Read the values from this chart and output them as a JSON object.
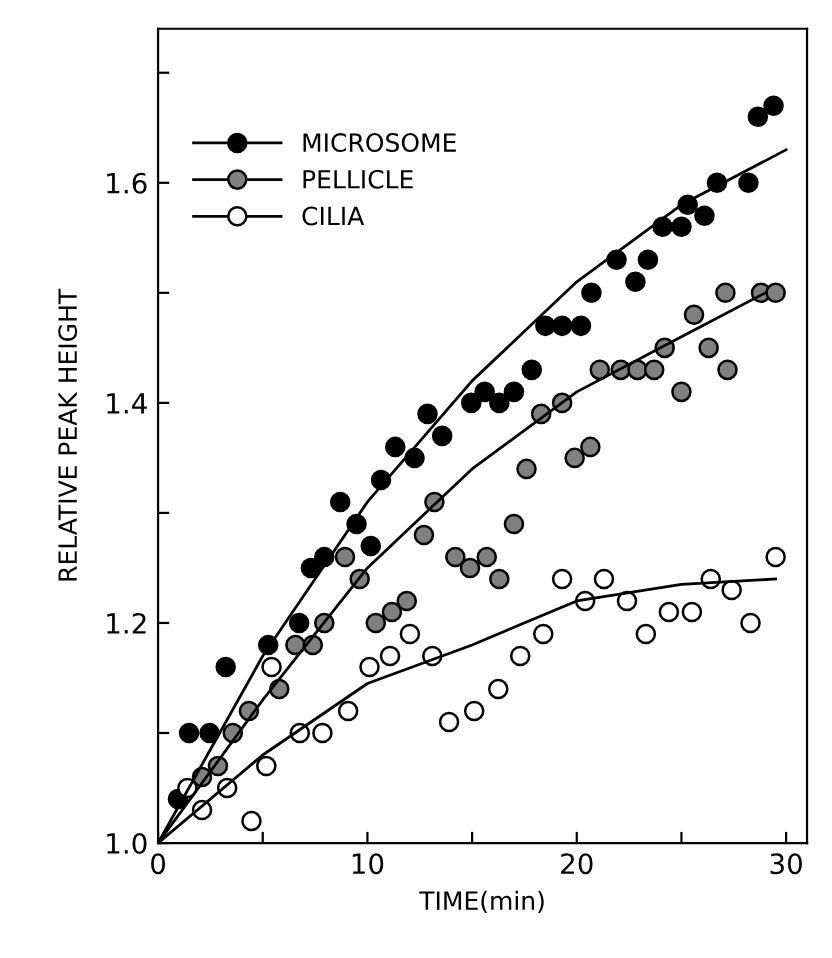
{
  "chart_data": {
    "type": "scatter",
    "xlabel": "TIME(min)",
    "ylabel": "RELATIVE PEAK HEIGHT",
    "xlim": [
      0,
      31
    ],
    "ylim": [
      1.0,
      1.74
    ],
    "xticks": [
      0,
      {
        "value": 5,
        "label": null
      },
      10,
      {
        "value": 15,
        "label": null
      },
      20,
      {
        "value": 25,
        "label": null
      },
      30
    ],
    "yticks": [
      {
        "value": 1.0,
        "label": "1.0"
      },
      {
        "value": 1.1,
        "label": null
      },
      1.2,
      {
        "value": 1.3,
        "label": null
      },
      1.4,
      {
        "value": 1.5,
        "label": null
      },
      1.6,
      {
        "value": 1.7,
        "label": null
      }
    ],
    "legend": "top left",
    "grid": false,
    "marker": "circle",
    "series": [
      {
        "name": "MICROSOME",
        "color": "#000000",
        "x": [
          0.95,
          1.48,
          2.46,
          3.23,
          5.26,
          6.74,
          7.3,
          7.94,
          8.7,
          9.48,
          10.16,
          10.65,
          11.33,
          12.25,
          12.87,
          13.57,
          14.96,
          15.6,
          16.3,
          17.0,
          17.85,
          18.5,
          19.3,
          20.2,
          20.7,
          21.9,
          22.8,
          23.4,
          24.1,
          25.0,
          25.3,
          26.1,
          26.7,
          28.2,
          28.65,
          29.4
        ],
        "values": [
          1.04,
          1.1,
          1.1,
          1.16,
          1.18,
          1.2,
          1.25,
          1.26,
          1.31,
          1.29,
          1.27,
          1.33,
          1.36,
          1.35,
          1.39,
          1.37,
          1.4,
          1.41,
          1.4,
          1.41,
          1.43,
          1.47,
          1.47,
          1.47,
          1.5,
          1.53,
          1.51,
          1.53,
          1.56,
          1.56,
          1.58,
          1.57,
          1.6,
          1.6,
          1.66,
          1.67
        ]
      },
      {
        "name": "PELLICLE",
        "color": "#808080",
        "x": [
          2.1,
          2.86,
          3.57,
          4.34,
          5.79,
          6.56,
          7.39,
          7.94,
          8.93,
          9.63,
          10.4,
          11.17,
          11.88,
          12.7,
          13.2,
          14.2,
          14.9,
          15.7,
          16.3,
          17.0,
          17.6,
          18.3,
          19.3,
          19.9,
          20.65,
          21.1,
          22.1,
          22.9,
          23.7,
          24.2,
          25.0,
          25.6,
          26.3,
          27.1,
          27.2,
          28.8,
          29.5
        ],
        "values": [
          1.06,
          1.07,
          1.1,
          1.12,
          1.14,
          1.18,
          1.18,
          1.2,
          1.26,
          1.24,
          1.2,
          1.21,
          1.22,
          1.28,
          1.31,
          1.26,
          1.25,
          1.26,
          1.24,
          1.29,
          1.34,
          1.39,
          1.4,
          1.35,
          1.36,
          1.43,
          1.43,
          1.43,
          1.43,
          1.45,
          1.41,
          1.48,
          1.45,
          1.5,
          1.43,
          1.5,
          1.5
        ]
      },
      {
        "name": "CILIA",
        "color": "#ffffff",
        "x": [
          1.4,
          2.1,
          3.3,
          4.46,
          5.17,
          5.42,
          6.77,
          7.85,
          9.08,
          10.1,
          11.08,
          12.03,
          13.1,
          13.9,
          15.1,
          16.25,
          17.3,
          18.4,
          19.3,
          20.4,
          21.3,
          22.4,
          23.3,
          24.4,
          25.5,
          26.4,
          27.4,
          28.3,
          29.5
        ],
        "values": [
          1.05,
          1.03,
          1.05,
          1.02,
          1.07,
          1.16,
          1.1,
          1.1,
          1.12,
          1.16,
          1.17,
          1.19,
          1.17,
          1.11,
          1.12,
          1.14,
          1.17,
          1.19,
          1.24,
          1.22,
          1.24,
          1.22,
          1.19,
          1.21,
          1.21,
          1.24,
          1.23,
          1.2,
          1.26
        ]
      },
      {
        "type": "line",
        "marker": "none",
        "color": "#000000",
        "x": [
          0,
          5,
          10,
          15,
          20,
          25,
          30
        ],
        "values": [
          1.0,
          1.17,
          1.31,
          1.42,
          1.51,
          1.58,
          1.63
        ]
      },
      {
        "type": "line",
        "marker": "none",
        "color": "#000000",
        "x": [
          0,
          5,
          10,
          15,
          20,
          25,
          29
        ],
        "values": [
          1.0,
          1.13,
          1.25,
          1.34,
          1.41,
          1.46,
          1.5
        ]
      },
      {
        "type": "line",
        "marker": "none",
        "color": "#000000",
        "x": [
          0,
          5,
          10,
          15,
          20,
          25,
          29.5
        ],
        "values": [
          1.0,
          1.08,
          1.145,
          1.18,
          1.22,
          1.235,
          1.24
        ]
      }
    ]
  }
}
